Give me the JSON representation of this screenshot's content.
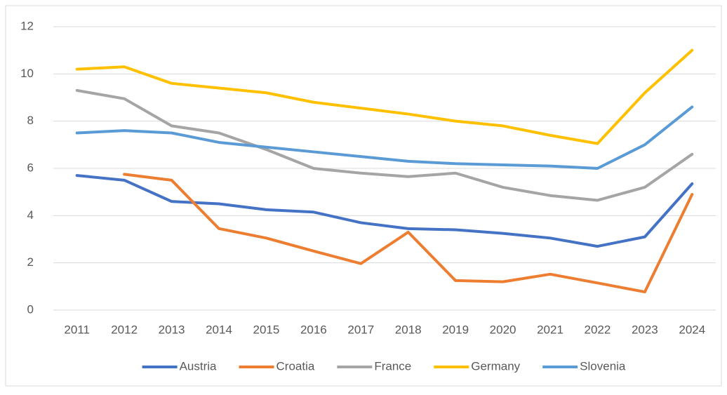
{
  "chart_data": {
    "type": "line",
    "categories": [
      "2011",
      "2012",
      "2013",
      "2014",
      "2015",
      "2016",
      "2017",
      "2018",
      "2019",
      "2020",
      "2021",
      "2022",
      "2023",
      "2024"
    ],
    "series": [
      {
        "name": "Austria",
        "color": "#4472c4",
        "values": [
          5.7,
          5.5,
          4.6,
          4.5,
          4.25,
          4.15,
          3.7,
          3.45,
          3.4,
          3.25,
          3.05,
          2.7,
          3.1,
          5.35
        ]
      },
      {
        "name": "Croatia",
        "color": "#ed7d31",
        "values": [
          null,
          5.75,
          5.5,
          3.45,
          3.05,
          2.5,
          1.97,
          3.3,
          1.25,
          1.2,
          1.52,
          1.15,
          0.77,
          4.9
        ]
      },
      {
        "name": "France",
        "color": "#a5a5a5",
        "values": [
          9.3,
          8.95,
          7.8,
          7.5,
          6.8,
          6.0,
          5.8,
          5.65,
          5.8,
          5.2,
          4.85,
          4.65,
          5.2,
          6.6
        ]
      },
      {
        "name": "Germany",
        "color": "#ffc000",
        "values": [
          10.2,
          10.3,
          9.6,
          9.4,
          9.2,
          8.8,
          8.55,
          8.3,
          8.0,
          7.8,
          7.4,
          7.05,
          9.2,
          11.0
        ]
      },
      {
        "name": "Slovenia",
        "color": "#5b9bd5",
        "values": [
          7.5,
          7.6,
          7.5,
          7.1,
          6.9,
          6.7,
          6.5,
          6.3,
          6.2,
          6.15,
          6.1,
          6.0,
          7.0,
          8.6
        ]
      }
    ],
    "ylim": [
      0,
      12
    ],
    "yticks": [
      0,
      2,
      4,
      6,
      8,
      10,
      12
    ],
    "grid": true,
    "legend": "bottom"
  }
}
